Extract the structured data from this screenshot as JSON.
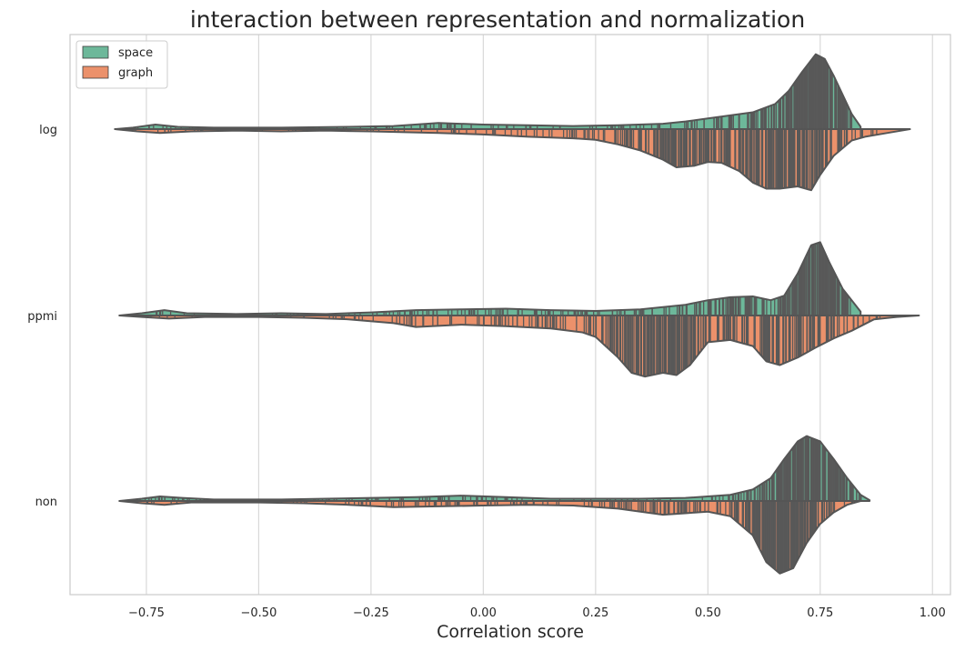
{
  "chart_data": {
    "type": "violin",
    "orientation": "horizontal",
    "split": true,
    "inner": "stick",
    "title": "interaction between representation and normalization",
    "xlabel": "Correlation score",
    "ylabel": "",
    "xlim": [
      -0.92,
      1.04
    ],
    "xticks": [
      -0.75,
      -0.5,
      -0.25,
      0.0,
      0.25,
      0.5,
      0.75,
      1.0
    ],
    "xtick_labels": [
      "−0.75",
      "−0.50",
      "−0.25",
      "0.00",
      "0.25",
      "0.50",
      "0.75",
      "1.00"
    ],
    "categories": [
      "log",
      "ppmi",
      "non"
    ],
    "grid": "vertical",
    "legend_position": "upper-left",
    "series": [
      {
        "name": "space",
        "color": "#6db89a",
        "side": "upper",
        "groups": [
          {
            "category": "log",
            "range": [
              -0.82,
              0.84
            ],
            "density": [
              [
                -0.82,
                0
              ],
              [
                -0.78,
                0.02
              ],
              [
                -0.73,
                0.06
              ],
              [
                -0.68,
                0.03
              ],
              [
                -0.6,
                0.02
              ],
              [
                -0.45,
                0.02
              ],
              [
                -0.3,
                0.03
              ],
              [
                -0.2,
                0.04
              ],
              [
                -0.1,
                0.08
              ],
              [
                0.0,
                0.06
              ],
              [
                0.1,
                0.05
              ],
              [
                0.2,
                0.04
              ],
              [
                0.3,
                0.05
              ],
              [
                0.4,
                0.07
              ],
              [
                0.45,
                0.1
              ],
              [
                0.5,
                0.14
              ],
              [
                0.55,
                0.18
              ],
              [
                0.6,
                0.22
              ],
              [
                0.65,
                0.33
              ],
              [
                0.68,
                0.5
              ],
              [
                0.71,
                0.75
              ],
              [
                0.74,
                0.98
              ],
              [
                0.76,
                0.92
              ],
              [
                0.78,
                0.7
              ],
              [
                0.8,
                0.45
              ],
              [
                0.82,
                0.2
              ],
              [
                0.84,
                0.03
              ]
            ]
          },
          {
            "category": "ppmi",
            "range": [
              -0.81,
              0.84
            ],
            "density": [
              [
                -0.81,
                0
              ],
              [
                -0.76,
                0.03
              ],
              [
                -0.71,
                0.07
              ],
              [
                -0.66,
                0.03
              ],
              [
                -0.55,
                0.02
              ],
              [
                -0.45,
                0.03
              ],
              [
                -0.35,
                0.02
              ],
              [
                -0.25,
                0.04
              ],
              [
                -0.15,
                0.07
              ],
              [
                -0.05,
                0.08
              ],
              [
                0.05,
                0.09
              ],
              [
                0.15,
                0.07
              ],
              [
                0.25,
                0.06
              ],
              [
                0.35,
                0.08
              ],
              [
                0.45,
                0.14
              ],
              [
                0.5,
                0.2
              ],
              [
                0.55,
                0.24
              ],
              [
                0.6,
                0.25
              ],
              [
                0.64,
                0.2
              ],
              [
                0.67,
                0.26
              ],
              [
                0.7,
                0.55
              ],
              [
                0.73,
                0.92
              ],
              [
                0.75,
                0.96
              ],
              [
                0.77,
                0.7
              ],
              [
                0.8,
                0.35
              ],
              [
                0.84,
                0.05
              ]
            ]
          },
          {
            "category": "non",
            "range": [
              -0.81,
              0.86
            ],
            "density": [
              [
                -0.81,
                0
              ],
              [
                -0.76,
                0.03
              ],
              [
                -0.72,
                0.06
              ],
              [
                -0.67,
                0.04
              ],
              [
                -0.6,
                0.02
              ],
              [
                -0.45,
                0.02
              ],
              [
                -0.35,
                0.03
              ],
              [
                -0.25,
                0.04
              ],
              [
                -0.15,
                0.05
              ],
              [
                -0.05,
                0.07
              ],
              [
                0.05,
                0.05
              ],
              [
                0.15,
                0.03
              ],
              [
                0.25,
                0.03
              ],
              [
                0.35,
                0.03
              ],
              [
                0.45,
                0.04
              ],
              [
                0.55,
                0.08
              ],
              [
                0.6,
                0.15
              ],
              [
                0.64,
                0.3
              ],
              [
                0.67,
                0.55
              ],
              [
                0.7,
                0.78
              ],
              [
                0.72,
                0.85
              ],
              [
                0.75,
                0.78
              ],
              [
                0.78,
                0.55
              ],
              [
                0.81,
                0.3
              ],
              [
                0.84,
                0.08
              ],
              [
                0.86,
                0.01
              ]
            ]
          }
        ]
      },
      {
        "name": "graph",
        "color": "#eb916b",
        "side": "lower",
        "groups": [
          {
            "category": "log",
            "range": [
              -0.82,
              0.95
            ],
            "density": [
              [
                -0.82,
                0
              ],
              [
                -0.77,
                0.03
              ],
              [
                -0.72,
                0.05
              ],
              [
                -0.65,
                0.03
              ],
              [
                -0.55,
                0.02
              ],
              [
                -0.45,
                0.03
              ],
              [
                -0.35,
                0.02
              ],
              [
                -0.25,
                0.03
              ],
              [
                -0.1,
                0.05
              ],
              [
                0.0,
                0.07
              ],
              [
                0.1,
                0.1
              ],
              [
                0.2,
                0.12
              ],
              [
                0.25,
                0.14
              ],
              [
                0.3,
                0.2
              ],
              [
                0.35,
                0.28
              ],
              [
                0.4,
                0.4
              ],
              [
                0.43,
                0.5
              ],
              [
                0.47,
                0.48
              ],
              [
                0.5,
                0.43
              ],
              [
                0.53,
                0.44
              ],
              [
                0.57,
                0.55
              ],
              [
                0.6,
                0.7
              ],
              [
                0.63,
                0.78
              ],
              [
                0.66,
                0.78
              ],
              [
                0.7,
                0.75
              ],
              [
                0.73,
                0.8
              ],
              [
                0.75,
                0.6
              ],
              [
                0.78,
                0.35
              ],
              [
                0.82,
                0.15
              ],
              [
                0.85,
                0.1
              ],
              [
                0.9,
                0.05
              ],
              [
                0.95,
                0
              ]
            ]
          },
          {
            "category": "ppmi",
            "range": [
              -0.81,
              0.97
            ],
            "density": [
              [
                -0.81,
                0
              ],
              [
                -0.76,
                0.02
              ],
              [
                -0.7,
                0.04
              ],
              [
                -0.62,
                0.02
              ],
              [
                -0.5,
                0.02
              ],
              [
                -0.4,
                0.03
              ],
              [
                -0.3,
                0.05
              ],
              [
                -0.2,
                0.1
              ],
              [
                -0.15,
                0.15
              ],
              [
                -0.05,
                0.12
              ],
              [
                0.05,
                0.14
              ],
              [
                0.15,
                0.17
              ],
              [
                0.22,
                0.22
              ],
              [
                0.25,
                0.28
              ],
              [
                0.3,
                0.55
              ],
              [
                0.33,
                0.75
              ],
              [
                0.36,
                0.8
              ],
              [
                0.4,
                0.75
              ],
              [
                0.43,
                0.78
              ],
              [
                0.46,
                0.65
              ],
              [
                0.5,
                0.35
              ],
              [
                0.55,
                0.32
              ],
              [
                0.6,
                0.4
              ],
              [
                0.63,
                0.6
              ],
              [
                0.66,
                0.65
              ],
              [
                0.7,
                0.55
              ],
              [
                0.74,
                0.42
              ],
              [
                0.78,
                0.3
              ],
              [
                0.82,
                0.2
              ],
              [
                0.87,
                0.05
              ],
              [
                0.92,
                0.02
              ],
              [
                0.97,
                0
              ]
            ]
          },
          {
            "category": "non",
            "range": [
              -0.81,
              0.84
            ],
            "density": [
              [
                -0.81,
                0
              ],
              [
                -0.76,
                0.03
              ],
              [
                -0.71,
                0.05
              ],
              [
                -0.65,
                0.02
              ],
              [
                -0.5,
                0.02
              ],
              [
                -0.4,
                0.03
              ],
              [
                -0.3,
                0.05
              ],
              [
                -0.2,
                0.08
              ],
              [
                -0.1,
                0.07
              ],
              [
                0.0,
                0.06
              ],
              [
                0.1,
                0.05
              ],
              [
                0.2,
                0.06
              ],
              [
                0.3,
                0.1
              ],
              [
                0.35,
                0.14
              ],
              [
                0.4,
                0.18
              ],
              [
                0.45,
                0.16
              ],
              [
                0.5,
                0.14
              ],
              [
                0.55,
                0.2
              ],
              [
                0.6,
                0.45
              ],
              [
                0.63,
                0.8
              ],
              [
                0.66,
                0.95
              ],
              [
                0.69,
                0.88
              ],
              [
                0.72,
                0.55
              ],
              [
                0.75,
                0.3
              ],
              [
                0.78,
                0.15
              ],
              [
                0.81,
                0.05
              ],
              [
                0.84,
                0
              ]
            ]
          }
        ]
      }
    ]
  }
}
